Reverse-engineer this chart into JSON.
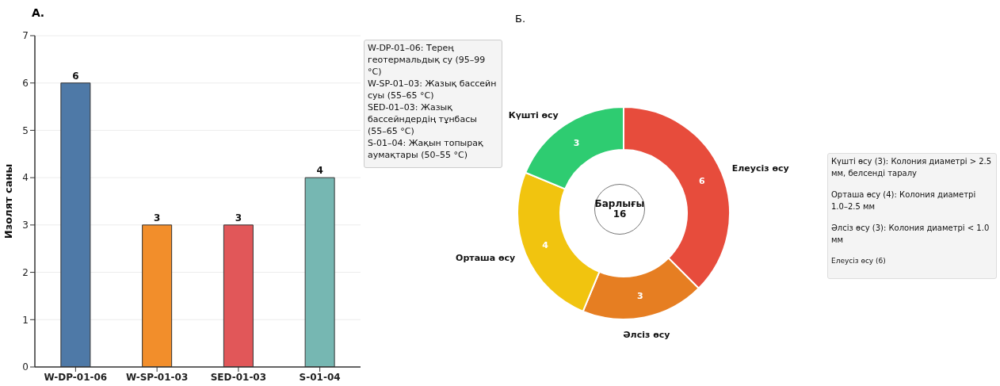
{
  "chart_data": [
    {
      "type": "bar",
      "title": "А.",
      "ylabel": "Изолят саны",
      "categories": [
        "W-DP-01-06",
        "W-SP-01-03",
        "SED-01-03",
        "S-01-04"
      ],
      "values": [
        6,
        3,
        3,
        4
      ],
      "colors": [
        "#4e79a7",
        "#f28e2b",
        "#e15759",
        "#76b7b2"
      ],
      "ylim": [
        0,
        7
      ],
      "yticks": [
        0,
        1,
        2,
        3,
        4,
        5,
        6,
        7
      ],
      "grid": "y",
      "data_labels": true,
      "annotations": [
        "W-DP-01–06: Терең геотермальдық су (95–99 °C)",
        "W-SP-01–03: Жазық бассейн суы (55–65 °C)",
        "SED-01–03: Жазық бассейндердің тұнбасы (55–65 °C)",
        "S-01–04: Жақын топырақ аумақтары (50–55 °C)"
      ]
    },
    {
      "type": "donut",
      "title": "Б.",
      "categories": [
        "Елеусіз өсу",
        "Әлсіз өсу",
        "Орташа өсу",
        "Күшті өсу"
      ],
      "values": [
        6,
        3,
        4,
        3
      ],
      "colors": [
        "#e74c3c",
        "#e67e22",
        "#f1c40f",
        "#2ecc71"
      ],
      "data_labels": true,
      "annotations": [
        "Барлығы\n16",
        "Күшті өсу (3): Колония диаметрі > 2.5 мм, белсенді таралу",
        "Орташа өсу (4): Колония диаметрі 1.0–2.5 мм",
        "Әлсіз өсу (3): Колония диаметрі < 1.0 мм",
        "Елеусіз өсу (6)"
      ]
    }
  ]
}
